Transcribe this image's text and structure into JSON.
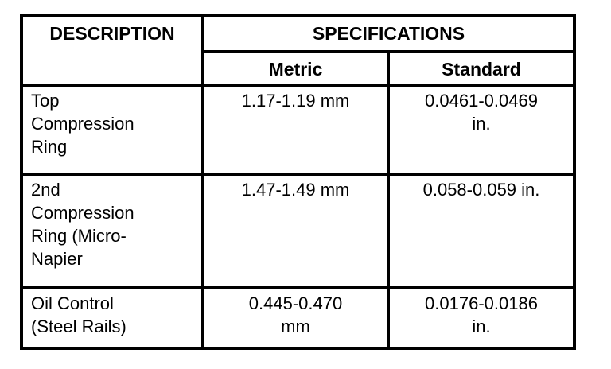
{
  "colors": {
    "border": "#000000",
    "background": "#ffffff",
    "text": "#000000"
  },
  "table": {
    "description_header": "DESCRIPTION",
    "specifications_header": "SPECIFICATIONS",
    "sub_headers": {
      "metric": "Metric",
      "standard": "Standard"
    },
    "rows": [
      {
        "description": "Top\nCompression\nRing",
        "metric": "1.17-1.19 mm",
        "standard": "0.0461-0.0469\nin."
      },
      {
        "description": "2nd\nCompression\nRing (Micro-\nNapier",
        "metric": "1.47-1.49 mm",
        "standard": "0.058-0.059 in."
      },
      {
        "description": "Oil Control\n(Steel Rails)",
        "metric": "0.445-0.470\nmm",
        "standard": "0.0176-0.0186\nin."
      }
    ]
  }
}
